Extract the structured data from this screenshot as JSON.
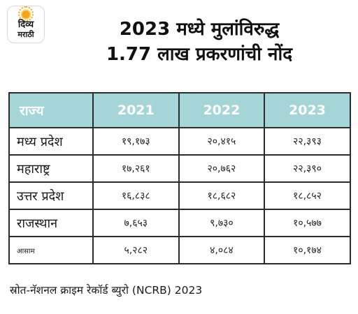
{
  "logo": {
    "line1": "दिव्य",
    "line2": "मराठी"
  },
  "headline": {
    "line1": "2023 मध्ये मुलांविरुद्ध",
    "line2": "1.77 लाख प्रकरणांची नोंद"
  },
  "table": {
    "headers": [
      "राज्य",
      "2021",
      "2022",
      "2023"
    ],
    "rows": [
      {
        "state": "मध्य प्रदेश",
        "y2021": "१९,१७३",
        "y2022": "२०,४१५",
        "y2023": "२२,३९३"
      },
      {
        "state": "महाराष्ट्र",
        "y2021": "१७,२६१",
        "y2022": "२०,७६२",
        "y2023": "२२,३९०"
      },
      {
        "state": "उत्तर प्रदेश",
        "y2021": "१६,८३८",
        "y2022": "१८,६८२",
        "y2023": "१८,८५२"
      },
      {
        "state": "राजस्थान",
        "y2021": "७,६५३",
        "y2022": "९,७३०",
        "y2023": "१०,५७७"
      },
      {
        "state": "आसाम",
        "y2021": "५,२८२",
        "y2022": "४,०८४",
        "y2023": "१०,१७४"
      }
    ]
  },
  "source": "स्रोत-नॅशनल क्राइम रेकॉर्ड ब्युरो (NCRB) 2023",
  "colors": {
    "header_bg": "#a5d5d6",
    "header_text": "#ffffff",
    "border": "#2c2c2c",
    "logo_sun": "#f7a21b"
  }
}
